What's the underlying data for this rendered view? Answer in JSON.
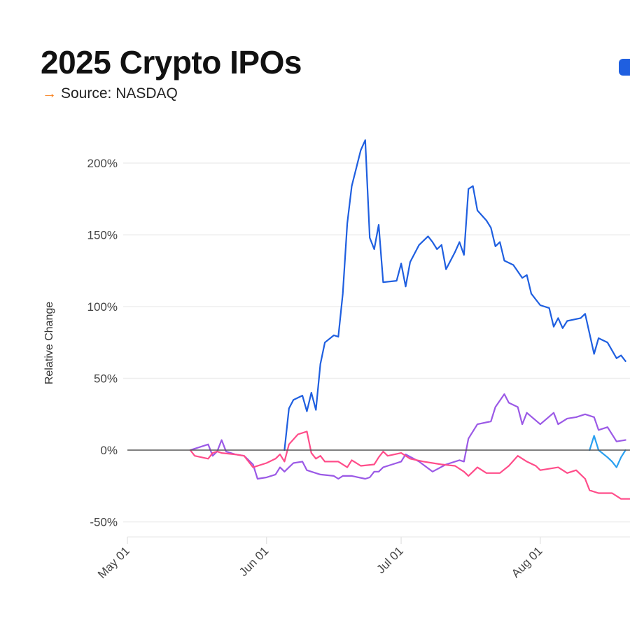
{
  "header": {
    "title": "2025 Crypto IPOs",
    "source_arrow": "→",
    "source": "Source: NASDAQ"
  },
  "legend": {
    "visible_swatch_color": "#1f5fe0"
  },
  "chart_data": {
    "type": "line",
    "title": "2025 Crypto IPOs",
    "ylabel": "Relative Change",
    "xlabel": "",
    "xlim": [
      "2025-05-01",
      "2025-08-21"
    ],
    "ylim": [
      -60,
      220
    ],
    "yticks": [
      -50,
      0,
      50,
      100,
      150,
      200
    ],
    "ytick_labels": [
      "-50%",
      "0%",
      "50%",
      "100%",
      "150%",
      "200%"
    ],
    "xticks": [
      "2025-05-01",
      "2025-06-01",
      "2025-07-01",
      "2025-08-01"
    ],
    "xtick_labels": [
      "May 01",
      "Jun 01",
      "Jul 01",
      "Aug 01"
    ],
    "grid": "horizontal",
    "baseline": 0,
    "series": [
      {
        "color": "#1f5fe0",
        "points": [
          [
            "2025-06-05",
            0
          ],
          [
            "2025-06-06",
            29
          ],
          [
            "2025-06-07",
            35
          ],
          [
            "2025-06-09",
            38
          ],
          [
            "2025-06-10",
            27
          ],
          [
            "2025-06-11",
            40
          ],
          [
            "2025-06-12",
            28
          ],
          [
            "2025-06-13",
            60
          ],
          [
            "2025-06-14",
            75
          ],
          [
            "2025-06-16",
            80
          ],
          [
            "2025-06-17",
            79
          ],
          [
            "2025-06-18",
            109
          ],
          [
            "2025-06-19",
            158
          ],
          [
            "2025-06-20",
            184
          ],
          [
            "2025-06-22",
            209
          ],
          [
            "2025-06-23",
            216
          ],
          [
            "2025-06-24",
            148
          ],
          [
            "2025-06-25",
            140
          ],
          [
            "2025-06-26",
            157
          ],
          [
            "2025-06-27",
            117
          ],
          [
            "2025-06-30",
            118
          ],
          [
            "2025-07-01",
            130
          ],
          [
            "2025-07-02",
            114
          ],
          [
            "2025-07-03",
            131
          ],
          [
            "2025-07-05",
            143
          ],
          [
            "2025-07-07",
            149
          ],
          [
            "2025-07-08",
            145
          ],
          [
            "2025-07-09",
            140
          ],
          [
            "2025-07-10",
            143
          ],
          [
            "2025-07-11",
            126
          ],
          [
            "2025-07-13",
            138
          ],
          [
            "2025-07-14",
            145
          ],
          [
            "2025-07-15",
            136
          ],
          [
            "2025-07-16",
            182
          ],
          [
            "2025-07-17",
            184
          ],
          [
            "2025-07-18",
            167
          ],
          [
            "2025-07-20",
            160
          ],
          [
            "2025-07-21",
            155
          ],
          [
            "2025-07-22",
            142
          ],
          [
            "2025-07-23",
            145
          ],
          [
            "2025-07-24",
            132
          ],
          [
            "2025-07-26",
            129
          ],
          [
            "2025-07-28",
            120
          ],
          [
            "2025-07-29",
            122
          ],
          [
            "2025-07-30",
            109
          ],
          [
            "2025-08-01",
            101
          ],
          [
            "2025-08-03",
            99
          ],
          [
            "2025-08-04",
            86
          ],
          [
            "2025-08-05",
            92
          ],
          [
            "2025-08-06",
            85
          ],
          [
            "2025-08-07",
            90
          ],
          [
            "2025-08-10",
            92
          ],
          [
            "2025-08-11",
            95
          ],
          [
            "2025-08-13",
            67
          ],
          [
            "2025-08-14",
            78
          ],
          [
            "2025-08-16",
            75
          ],
          [
            "2025-08-18",
            64
          ],
          [
            "2025-08-19",
            66
          ],
          [
            "2025-08-20",
            62
          ]
        ]
      },
      {
        "color": "#9b59e6",
        "points": [
          [
            "2025-05-15",
            0
          ],
          [
            "2025-05-17",
            2
          ],
          [
            "2025-05-19",
            4
          ],
          [
            "2025-05-20",
            -4
          ],
          [
            "2025-05-21",
            -1
          ],
          [
            "2025-05-22",
            7
          ],
          [
            "2025-05-23",
            -1
          ],
          [
            "2025-05-25",
            -3
          ],
          [
            "2025-05-27",
            -4
          ],
          [
            "2025-05-29",
            -10
          ],
          [
            "2025-05-30",
            -20
          ],
          [
            "2025-06-01",
            -19
          ],
          [
            "2025-06-03",
            -17
          ],
          [
            "2025-06-04",
            -12
          ],
          [
            "2025-06-05",
            -15
          ],
          [
            "2025-06-06",
            -12
          ],
          [
            "2025-06-07",
            -9
          ],
          [
            "2025-06-09",
            -8
          ],
          [
            "2025-06-10",
            -14
          ],
          [
            "2025-06-11",
            -15
          ],
          [
            "2025-06-13",
            -17
          ],
          [
            "2025-06-16",
            -18
          ],
          [
            "2025-06-17",
            -20
          ],
          [
            "2025-06-18",
            -18
          ],
          [
            "2025-06-20",
            -18
          ],
          [
            "2025-06-23",
            -20
          ],
          [
            "2025-06-24",
            -19
          ],
          [
            "2025-06-25",
            -15
          ],
          [
            "2025-06-26",
            -15
          ],
          [
            "2025-06-27",
            -12
          ],
          [
            "2025-06-29",
            -10
          ],
          [
            "2025-07-01",
            -8
          ],
          [
            "2025-07-02",
            -3
          ],
          [
            "2025-07-05",
            -8
          ],
          [
            "2025-07-08",
            -15
          ],
          [
            "2025-07-11",
            -10
          ],
          [
            "2025-07-14",
            -7
          ],
          [
            "2025-07-15",
            -8
          ],
          [
            "2025-07-16",
            8
          ],
          [
            "2025-07-18",
            18
          ],
          [
            "2025-07-21",
            20
          ],
          [
            "2025-07-22",
            30
          ],
          [
            "2025-07-24",
            39
          ],
          [
            "2025-07-25",
            33
          ],
          [
            "2025-07-27",
            30
          ],
          [
            "2025-07-28",
            18
          ],
          [
            "2025-07-29",
            26
          ],
          [
            "2025-08-01",
            18
          ],
          [
            "2025-08-04",
            26
          ],
          [
            "2025-08-05",
            18
          ],
          [
            "2025-08-07",
            22
          ],
          [
            "2025-08-09",
            23
          ],
          [
            "2025-08-11",
            25
          ],
          [
            "2025-08-13",
            23
          ],
          [
            "2025-08-14",
            14
          ],
          [
            "2025-08-16",
            16
          ],
          [
            "2025-08-18",
            6
          ],
          [
            "2025-08-20",
            7
          ]
        ]
      },
      {
        "color": "#ff4d8a",
        "points": [
          [
            "2025-05-15",
            0
          ],
          [
            "2025-05-16",
            -4
          ],
          [
            "2025-05-19",
            -6
          ],
          [
            "2025-05-20",
            -2
          ],
          [
            "2025-05-21",
            -1
          ],
          [
            "2025-05-22",
            -2
          ],
          [
            "2025-05-25",
            -3
          ],
          [
            "2025-05-27",
            -4
          ],
          [
            "2025-05-29",
            -12
          ],
          [
            "2025-06-01",
            -9
          ],
          [
            "2025-06-03",
            -6
          ],
          [
            "2025-06-04",
            -3
          ],
          [
            "2025-06-05",
            -8
          ],
          [
            "2025-06-06",
            4
          ],
          [
            "2025-06-08",
            11
          ],
          [
            "2025-06-10",
            13
          ],
          [
            "2025-06-11",
            -2
          ],
          [
            "2025-06-12",
            -6
          ],
          [
            "2025-06-13",
            -4
          ],
          [
            "2025-06-14",
            -8
          ],
          [
            "2025-06-17",
            -8
          ],
          [
            "2025-06-19",
            -12
          ],
          [
            "2025-06-20",
            -7
          ],
          [
            "2025-06-22",
            -11
          ],
          [
            "2025-06-25",
            -10
          ],
          [
            "2025-06-26",
            -5
          ],
          [
            "2025-06-27",
            -1
          ],
          [
            "2025-06-28",
            -4
          ],
          [
            "2025-07-01",
            -2
          ],
          [
            "2025-07-03",
            -6
          ],
          [
            "2025-07-06",
            -8
          ],
          [
            "2025-07-10",
            -10
          ],
          [
            "2025-07-13",
            -11
          ],
          [
            "2025-07-15",
            -15
          ],
          [
            "2025-07-16",
            -18
          ],
          [
            "2025-07-17",
            -15
          ],
          [
            "2025-07-18",
            -12
          ],
          [
            "2025-07-20",
            -16
          ],
          [
            "2025-07-23",
            -16
          ],
          [
            "2025-07-25",
            -11
          ],
          [
            "2025-07-27",
            -4
          ],
          [
            "2025-07-29",
            -8
          ],
          [
            "2025-07-31",
            -11
          ],
          [
            "2025-08-01",
            -14
          ],
          [
            "2025-08-05",
            -12
          ],
          [
            "2025-08-07",
            -16
          ],
          [
            "2025-08-09",
            -14
          ],
          [
            "2025-08-11",
            -20
          ],
          [
            "2025-08-12",
            -28
          ],
          [
            "2025-08-14",
            -30
          ],
          [
            "2025-08-17",
            -30
          ],
          [
            "2025-08-19",
            -34
          ],
          [
            "2025-08-21",
            -34
          ]
        ]
      },
      {
        "color": "#2aa0f0",
        "points": [
          [
            "2025-08-12",
            0
          ],
          [
            "2025-08-13",
            10
          ],
          [
            "2025-08-14",
            0
          ],
          [
            "2025-08-16",
            -5
          ],
          [
            "2025-08-17",
            -8
          ],
          [
            "2025-08-18",
            -12
          ],
          [
            "2025-08-19",
            -5
          ],
          [
            "2025-08-20",
            0
          ]
        ]
      }
    ]
  }
}
